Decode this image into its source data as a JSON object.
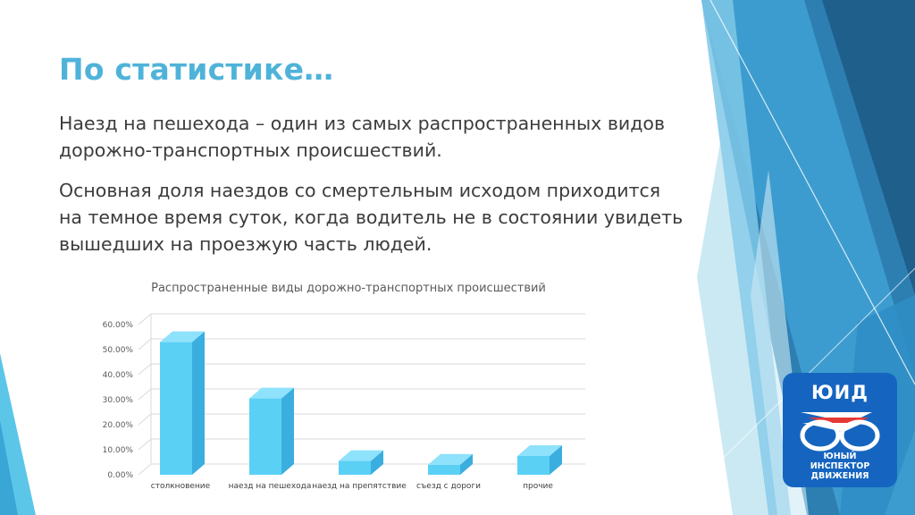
{
  "slide": {
    "title": "По статистике…",
    "paragraphs": [
      "Наезд на пешехода – один из самых распространенных видов дорожно-транспортных происшествий.",
      "Основная доля наездов со смертельным исходом приходится на темное время суток, когда водитель не в состоянии увидеть вышедших на проезжую часть людей."
    ]
  },
  "logo": {
    "top_text": "ЮИД",
    "lines": [
      "ЮНЫЙ",
      "ИНСПЕКТОР",
      "ДВИЖЕНИЯ"
    ]
  },
  "colors": {
    "title": "#4fb3d9",
    "bar_front": "#5bd0f5",
    "bar_side": "#3aaede",
    "bar_top": "#8fe2fb",
    "logo_bg": "#1565c0",
    "logo_red": "#e53935"
  },
  "chart_data": {
    "type": "bar",
    "title": "Распространенные виды дорожно-транспортных происшествий",
    "categories": [
      "столкновение",
      "наезд на пешехода",
      "наезд на препятствие",
      "съезд с дороги",
      "прочие"
    ],
    "values": [
      0.53,
      0.305,
      0.055,
      0.04,
      0.075
    ],
    "ylim": [
      0,
      0.6
    ],
    "yticks": [
      "0.00%",
      "10.00%",
      "20.00%",
      "30.00%",
      "40.00%",
      "50.00%",
      "60.00%"
    ],
    "grid": true,
    "three_d": true
  }
}
